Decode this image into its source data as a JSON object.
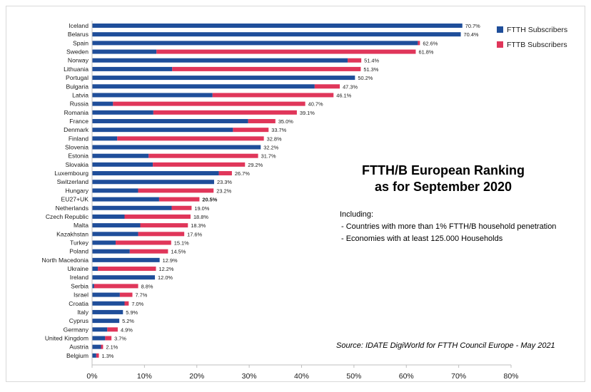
{
  "chart_data": {
    "type": "bar",
    "orientation": "horizontal",
    "stacked": true,
    "title_lines": [
      "FTTH/B European Ranking",
      "as for September 2020"
    ],
    "xlim": [
      0,
      80
    ],
    "x_ticks": [
      "0%",
      "10%",
      "20%",
      "30%",
      "40%",
      "50%",
      "60%",
      "70%",
      "80%"
    ],
    "legend_position": "top-right",
    "series": [
      {
        "name": "FTTH Subscribers",
        "color": "#1f4e9a"
      },
      {
        "name": "FTTB Subscribers",
        "color": "#e0365a"
      }
    ],
    "categories": [
      "Iceland",
      "Belarus",
      "Spain",
      "Sweden",
      "Norway",
      "Lithuania",
      "Portugal",
      "Bulgaria",
      "Latvia",
      "Russia",
      "Romania",
      "France",
      "Denmark",
      "Finland",
      "Slovenia",
      "Estonia",
      "Slovakia",
      "Luxembourg",
      "Switzerland",
      "Hungary",
      "EU27+UK",
      "Netherlands",
      "Czech Republic",
      "Malta",
      "Kazakhstan",
      "Turkey",
      "Poland",
      "North Macedonia",
      "Ukraine",
      "Ireland",
      "Serbia",
      "Israel",
      "Croatia",
      "Italy",
      "Cyprus",
      "Germany",
      "United Kingdom",
      "Austria",
      "Belgium"
    ],
    "ftth": [
      70.7,
      70.4,
      62.2,
      12.3,
      48.8,
      15.3,
      50.2,
      42.5,
      23.0,
      4.0,
      11.7,
      29.8,
      26.9,
      4.8,
      32.2,
      10.8,
      11.6,
      24.2,
      23.3,
      8.8,
      12.8,
      15.2,
      6.2,
      9.2,
      8.8,
      4.5,
      7.2,
      12.9,
      1.1,
      12.0,
      0.4,
      5.3,
      6.2,
      5.9,
      5.2,
      2.9,
      2.5,
      1.7,
      0.8
    ],
    "fttb": [
      0.0,
      0.0,
      0.4,
      49.5,
      2.6,
      36.0,
      0.0,
      4.8,
      23.1,
      36.7,
      27.4,
      5.2,
      6.8,
      28.0,
      0.0,
      20.9,
      17.6,
      2.5,
      0.0,
      14.4,
      7.7,
      3.8,
      12.6,
      9.1,
      8.8,
      10.6,
      7.3,
      0.0,
      11.1,
      0.0,
      8.4,
      2.4,
      0.8,
      0.0,
      0.0,
      2.0,
      1.2,
      0.4,
      0.5
    ],
    "totals_labels": [
      "70.7%",
      "70.4%",
      "62.6%",
      "61.8%",
      "51.4%",
      "51.3%",
      "50.2%",
      "47.3%",
      "46.1%",
      "40.7%",
      "39.1%",
      "35.0%",
      "33.7%",
      "32.8%",
      "32.2%",
      "31.7%",
      "29.2%",
      "26.7%",
      "23.3%",
      "23.2%",
      "20.5%",
      "19.0%",
      "18.8%",
      "18.3%",
      "17.6%",
      "15.1%",
      "14.5%",
      "12.9%",
      "12.2%",
      "12.0%",
      "8.8%",
      "7.7%",
      "7.0%",
      "5.9%",
      "5.2%",
      "4.9%",
      "3.7%",
      "2.1%",
      "1.3%"
    ],
    "highlight_category": "EU27+UK",
    "notes": {
      "heading": "Including:",
      "lines": [
        "- Countries with more than 1% FTTH/B household penetration",
        "- Economies with at least 125.000 Households"
      ]
    },
    "source": "Source: IDATE DigiWorld for FTTH Council Europe - May 2021"
  }
}
